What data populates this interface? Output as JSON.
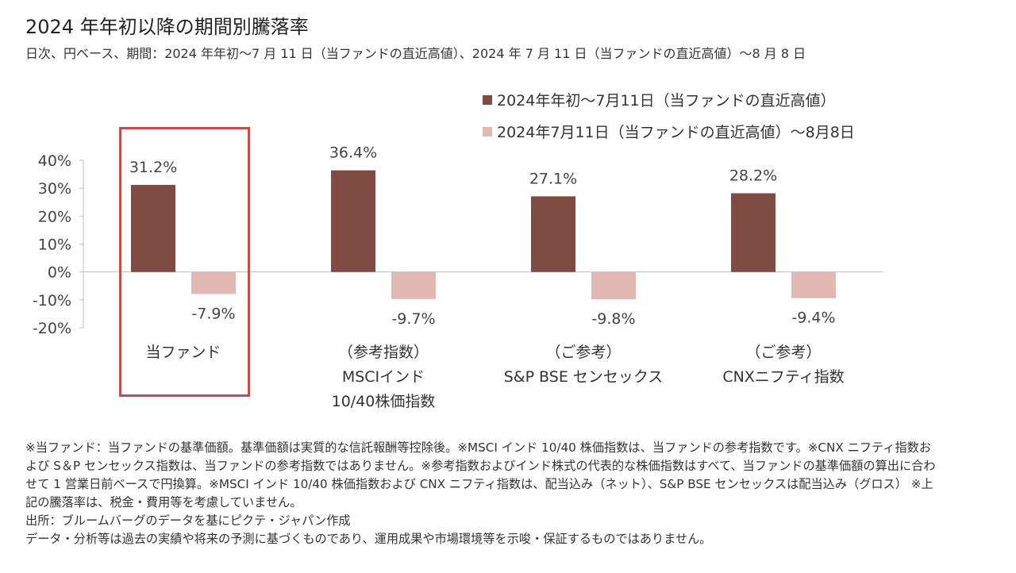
{
  "title": "2024 年年初以降の期間別騰落率",
  "subtitle": "日次、円ベース、期間：2024 年年初～7 月 11 日（当ファンドの直近高値）、2024 年 7 月 11 日（当ファンドの直近高値）～8 月 8 日",
  "colors": {
    "series1": "#7f4a42",
    "series2": "#e2b8b2",
    "highlight": "#c0504d"
  },
  "chart_data": {
    "type": "bar",
    "categories": [
      [
        "当ファンド"
      ],
      [
        "（参考指数）",
        "MSCIインド",
        "10/40株価指数"
      ],
      [
        "（ご参考）",
        "S&P BSE センセックス"
      ],
      [
        "（ご参考）",
        "CNXニフティ指数"
      ]
    ],
    "series": [
      {
        "name": "2024年年初～7月11日（当ファンドの直近高値）",
        "values": [
          31.2,
          36.4,
          27.1,
          28.2
        ]
      },
      {
        "name": "2024年7月11日（当ファンドの直近高値）～8月8日",
        "values": [
          -7.9,
          -9.7,
          -9.8,
          -9.4
        ]
      }
    ],
    "data_labels": [
      [
        "31.2%",
        "36.4%",
        "27.1%",
        "28.2%"
      ],
      [
        "-7.9%",
        "-9.7%",
        "-9.8%",
        "-9.4%"
      ]
    ],
    "yticks": [
      40,
      30,
      20,
      10,
      0,
      -10,
      -20
    ],
    "ytick_labels": [
      "40%",
      "30%",
      "20%",
      "10%",
      "0%",
      "-10%",
      "-20%"
    ],
    "ylim": [
      -20,
      40
    ],
    "legend_position": "top-right",
    "grid": false,
    "highlighted_category": 0
  },
  "footnotes": [
    "※当ファンド：当ファンドの基準価額。基準価額は実質的な信託報酬等控除後。※MSCI インド 10/40 株価指数は、当ファンドの参考指数です。※CNX ニフティ指数および S＆P センセックス指数は、当ファンドの参考指数ではありません。※参考指数およびインド株式の代表的な株価指数はすべて、当ファンドの基準価額の算出に合わせて 1 営業日前ベースで円換算。※MSCI インド 10/40 株価指数および CNX ニフティ指数は、配当込み（ネット）、S&P BSE センセックスは配当込み（グロス） ※上記の騰落率は、税金・費用等を考慮していません。",
    "出所：ブルームバーグのデータを基にピクテ・ジャパン作成",
    "データ・分析等は過去の実績や将来の予測に基づくものであり、運用成果や市場環境等を示唆・保証するものではありません。"
  ]
}
